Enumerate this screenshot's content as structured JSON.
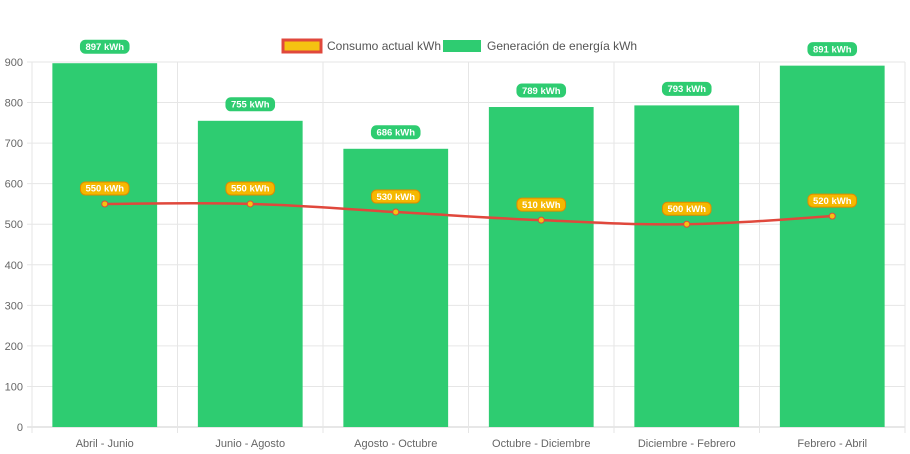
{
  "chart_data": {
    "type": "bar",
    "categories": [
      "Abril - Junio",
      "Junio - Agosto",
      "Agosto - Octubre",
      "Octubre - Diciembre",
      "Diciembre - Febrero",
      "Febrero - Abril"
    ],
    "series": [
      {
        "name": "Consumo actual kWh",
        "type": "line",
        "values": [
          550,
          550,
          530,
          510,
          500,
          520
        ],
        "labels": [
          "550 kWh",
          "550 kWh",
          "530 kWh",
          "510 kWh",
          "500 kWh",
          "520 kWh"
        ],
        "line_color": "#e0483c",
        "fill_color": "#f5c211",
        "border_color": "#e0483c",
        "badge_color": "#f5b800",
        "badge_border": "#e08a00"
      },
      {
        "name": "Generación de energía kWh",
        "type": "bar",
        "values": [
          897,
          755,
          686,
          789,
          793,
          891
        ],
        "labels": [
          "897 kWh",
          "755 kWh",
          "686 kWh",
          "789 kWh",
          "793 kWh",
          "891 kWh"
        ],
        "color": "#2ecc71"
      }
    ],
    "ylim": [
      0,
      900
    ],
    "yticks": [
      0,
      100,
      200,
      300,
      400,
      500,
      600,
      700,
      800,
      900
    ],
    "grid": true,
    "legend_position": "top-center"
  }
}
